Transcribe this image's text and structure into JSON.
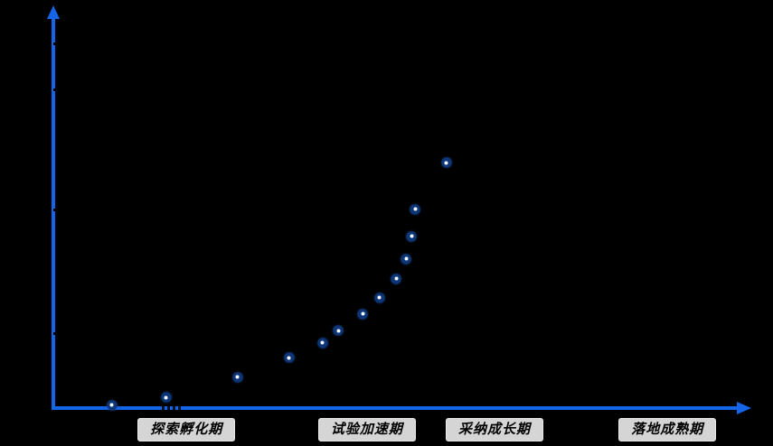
{
  "colors": {
    "background": "#000000",
    "axis_blue": "#1565E8",
    "point_ring": "#0D3577",
    "point_glow": "#1A57B8",
    "point_core": "#F4FAFF",
    "pill_background": "#D5D5D5",
    "pill_border": "#E9E9E9",
    "pill_text": "#000000"
  },
  "chart_data": {
    "type": "scatter",
    "title": "",
    "xlabel": "",
    "ylabel": "",
    "grid": false,
    "legend": false,
    "axis_arrows": true,
    "x_range_normalized": [
      0,
      1
    ],
    "y_range_normalized": [
      0,
      1
    ],
    "y_ticks_normalized": [
      0.19,
      0.5,
      0.8,
      0.917
    ],
    "stages": [
      {
        "label": "探索孵化期",
        "x": 0.191
      },
      {
        "label": "试验加速期",
        "x": 0.45
      },
      {
        "label": "采纳成长期",
        "x": 0.633
      },
      {
        "label": "落地成熟期",
        "x": 0.881
      }
    ],
    "points": [
      {
        "x": 0.084,
        "y": 0.007
      },
      {
        "x": 0.162,
        "y": 0.027
      },
      {
        "x": 0.264,
        "y": 0.077
      },
      {
        "x": 0.338,
        "y": 0.126
      },
      {
        "x": 0.386,
        "y": 0.164
      },
      {
        "x": 0.409,
        "y": 0.194
      },
      {
        "x": 0.444,
        "y": 0.236
      },
      {
        "x": 0.468,
        "y": 0.277
      },
      {
        "x": 0.492,
        "y": 0.324
      },
      {
        "x": 0.506,
        "y": 0.374
      },
      {
        "x": 0.514,
        "y": 0.43
      },
      {
        "x": 0.519,
        "y": 0.498
      },
      {
        "x": 0.564,
        "y": 0.615
      }
    ]
  }
}
